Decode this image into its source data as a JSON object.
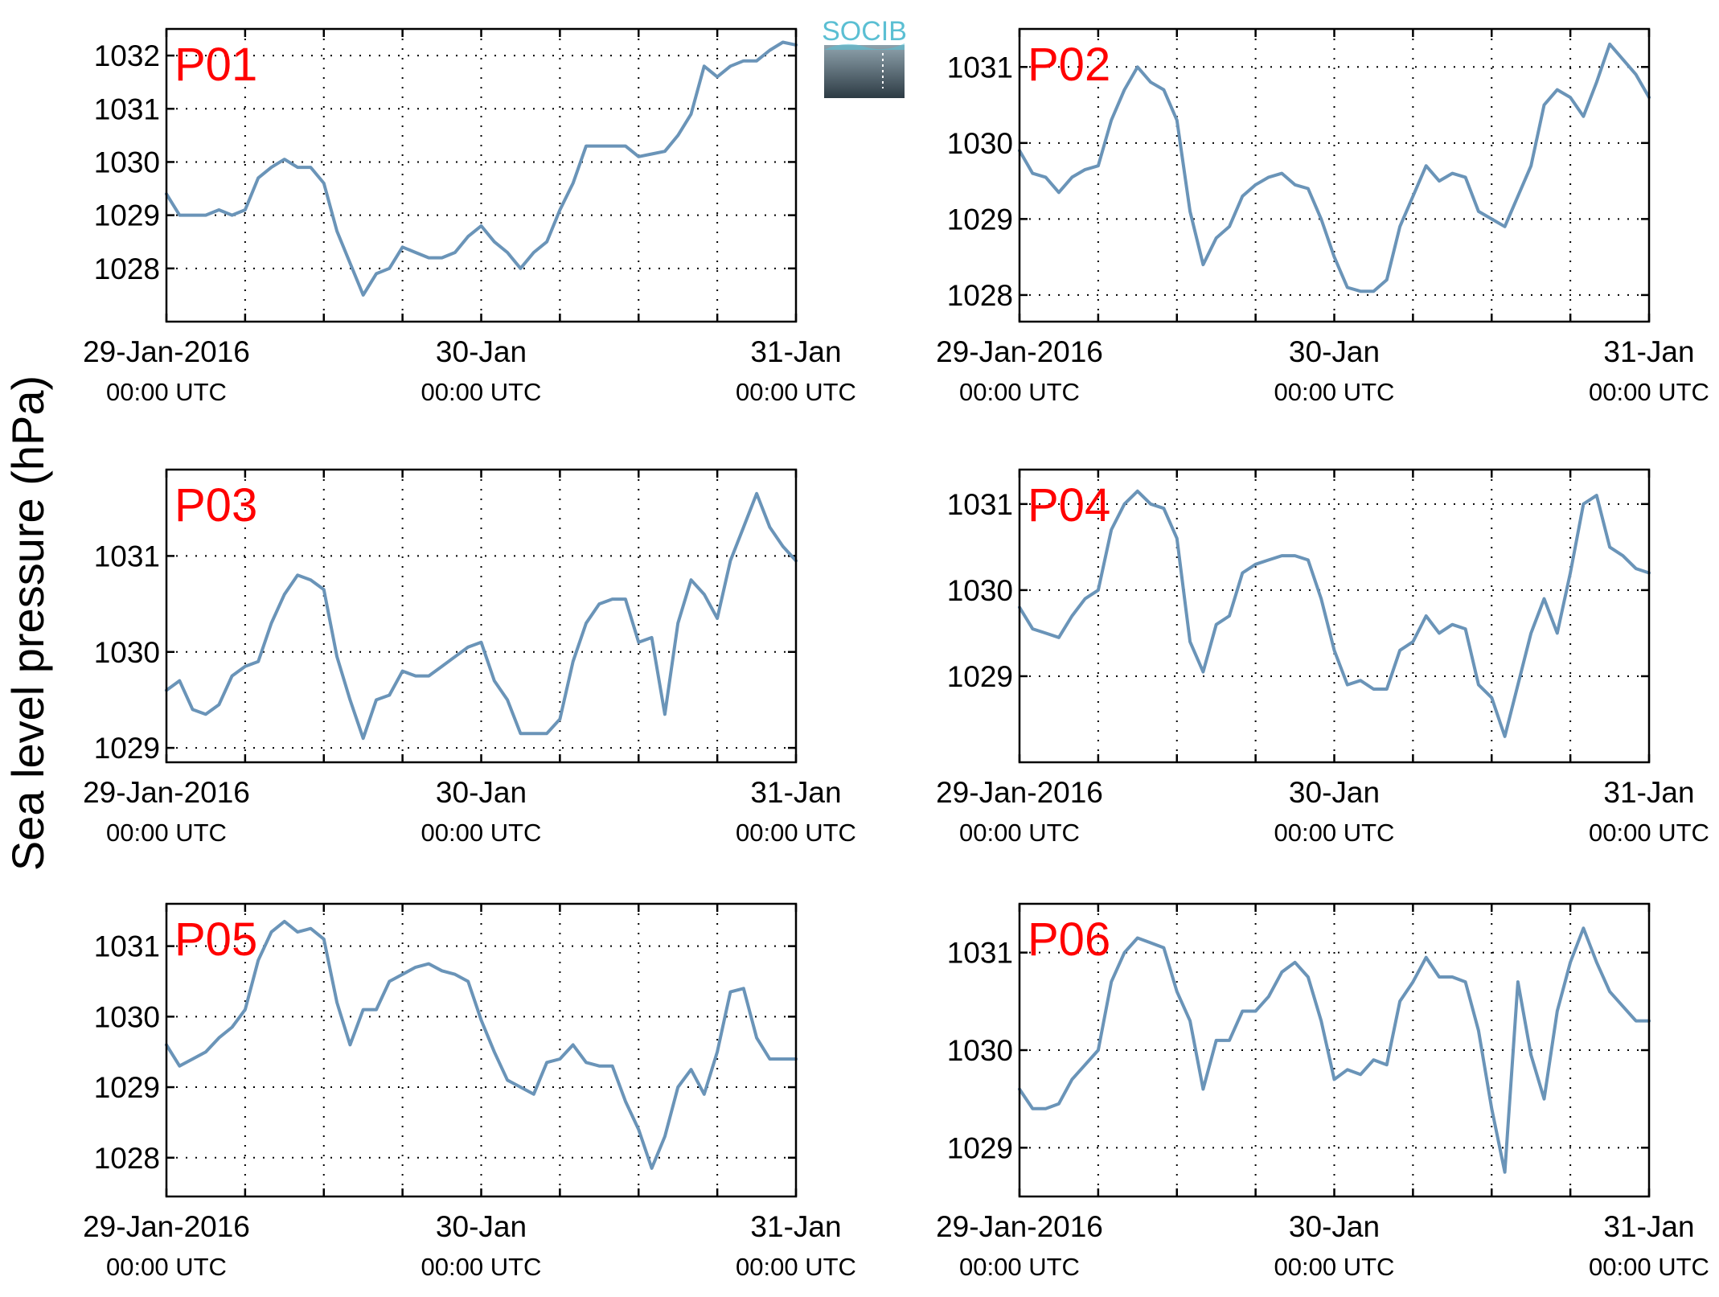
{
  "ylabel": "Sea level pressure (hPa)",
  "logo": {
    "text": "SOCIB",
    "text_color": "#5bbfd3",
    "gradient_top": "#8fa3ad",
    "gradient_bottom": "#2d3b44"
  },
  "colors": {
    "line": "#6a94b8",
    "label": "#ff0000",
    "axis": "#000000"
  },
  "chart_data": [
    {
      "type": "line",
      "title": "P01",
      "ylim": [
        1027.0,
        1032.5
      ],
      "yticks": [
        1028,
        1029,
        1030,
        1031,
        1032
      ],
      "xlim": [
        0,
        48
      ],
      "xtick_labels": [
        "29-Jan-2016",
        "30-Jan",
        "31-Jan"
      ],
      "xtick_sublabels": [
        "00:00 UTC",
        "00:00 UTC",
        "00:00 UTC"
      ],
      "grid": true,
      "x": [
        0,
        1,
        2,
        3,
        4,
        5,
        6,
        7,
        8,
        9,
        10,
        11,
        12,
        13,
        14,
        15,
        16,
        17,
        18,
        19,
        20,
        21,
        22,
        23,
        24,
        25,
        26,
        27,
        28,
        29,
        30,
        31,
        32,
        33,
        34,
        35,
        36,
        37,
        38,
        39,
        40,
        41,
        42,
        43,
        44,
        45,
        46,
        47,
        48
      ],
      "series": [
        {
          "values": [
            1029.4,
            1029.0,
            1029.0,
            1029.0,
            1029.1,
            1029.0,
            1029.1,
            1029.7,
            1029.9,
            1030.05,
            1029.9,
            1029.9,
            1029.6,
            1028.7,
            1028.1,
            1027.5,
            1027.9,
            1028.0,
            1028.4,
            1028.3,
            1028.2,
            1028.2,
            1028.3,
            1028.6,
            1028.8,
            1028.5,
            1028.3,
            1028.0,
            1028.3,
            1028.5,
            1029.1,
            1029.6,
            1030.3,
            1030.3,
            1030.3,
            1030.3,
            1030.1,
            1030.15,
            1030.2,
            1030.5,
            1030.9,
            1031.8,
            1031.6,
            1031.8,
            1031.9,
            1031.9,
            1032.1,
            1032.25,
            1032.2
          ]
        }
      ]
    },
    {
      "type": "line",
      "title": "P02",
      "ylim": [
        1027.65,
        1031.5
      ],
      "yticks": [
        1028,
        1029,
        1030,
        1031
      ],
      "xlim": [
        0,
        48
      ],
      "xtick_labels": [
        "29-Jan-2016",
        "30-Jan",
        "31-Jan"
      ],
      "xtick_sublabels": [
        "00:00 UTC",
        "00:00 UTC",
        "00:00 UTC"
      ],
      "grid": true,
      "x": [
        0,
        1,
        2,
        3,
        4,
        5,
        6,
        7,
        8,
        9,
        10,
        11,
        12,
        13,
        14,
        15,
        16,
        17,
        18,
        19,
        20,
        21,
        22,
        23,
        24,
        25,
        26,
        27,
        28,
        29,
        30,
        31,
        32,
        33,
        34,
        35,
        36,
        37,
        38,
        39,
        40,
        41,
        42,
        43,
        44,
        45,
        46,
        47,
        48
      ],
      "series": [
        {
          "values": [
            1029.9,
            1029.6,
            1029.55,
            1029.35,
            1029.55,
            1029.65,
            1029.7,
            1030.3,
            1030.7,
            1031.0,
            1030.8,
            1030.7,
            1030.3,
            1029.1,
            1028.4,
            1028.75,
            1028.9,
            1029.3,
            1029.45,
            1029.55,
            1029.6,
            1029.45,
            1029.4,
            1029.0,
            1028.5,
            1028.1,
            1028.05,
            1028.05,
            1028.2,
            1028.9,
            1029.3,
            1029.7,
            1029.5,
            1029.6,
            1029.55,
            1029.1,
            1029.0,
            1028.9,
            1029.3,
            1029.7,
            1030.5,
            1030.7,
            1030.6,
            1030.35,
            1030.8,
            1031.3,
            1031.1,
            1030.9,
            1030.6
          ]
        }
      ]
    },
    {
      "type": "line",
      "title": "P03",
      "ylim": [
        1028.85,
        1031.9
      ],
      "yticks": [
        1029,
        1030,
        1031
      ],
      "xlim": [
        0,
        48
      ],
      "xtick_labels": [
        "29-Jan-2016",
        "30-Jan",
        "31-Jan"
      ],
      "xtick_sublabels": [
        "00:00 UTC",
        "00:00 UTC",
        "00:00 UTC"
      ],
      "grid": true,
      "x": [
        0,
        1,
        2,
        3,
        4,
        5,
        6,
        7,
        8,
        9,
        10,
        11,
        12,
        13,
        14,
        15,
        16,
        17,
        18,
        19,
        20,
        21,
        22,
        23,
        24,
        25,
        26,
        27,
        28,
        29,
        30,
        31,
        32,
        33,
        34,
        35,
        36,
        37,
        38,
        39,
        40,
        41,
        42,
        43,
        44,
        45,
        46,
        47,
        48
      ],
      "series": [
        {
          "values": [
            1029.6,
            1029.7,
            1029.4,
            1029.35,
            1029.45,
            1029.75,
            1029.85,
            1029.9,
            1030.3,
            1030.6,
            1030.8,
            1030.75,
            1030.65,
            1029.95,
            1029.5,
            1029.1,
            1029.5,
            1029.55,
            1029.8,
            1029.75,
            1029.75,
            1029.85,
            1029.95,
            1030.05,
            1030.1,
            1029.7,
            1029.5,
            1029.15,
            1029.15,
            1029.15,
            1029.3,
            1029.9,
            1030.3,
            1030.5,
            1030.55,
            1030.55,
            1030.1,
            1030.15,
            1029.35,
            1030.3,
            1030.75,
            1030.6,
            1030.35,
            1030.95,
            1031.3,
            1031.65,
            1031.3,
            1031.1,
            1030.95
          ]
        }
      ]
    },
    {
      "type": "line",
      "title": "P04",
      "ylim": [
        1028.0,
        1031.4
      ],
      "yticks": [
        1029,
        1030,
        1031
      ],
      "xlim": [
        0,
        48
      ],
      "xtick_labels": [
        "29-Jan-2016",
        "30-Jan",
        "31-Jan"
      ],
      "xtick_sublabels": [
        "00:00 UTC",
        "00:00 UTC",
        "00:00 UTC"
      ],
      "grid": true,
      "x": [
        0,
        1,
        2,
        3,
        4,
        5,
        6,
        7,
        8,
        9,
        10,
        11,
        12,
        13,
        14,
        15,
        16,
        17,
        18,
        19,
        20,
        21,
        22,
        23,
        24,
        25,
        26,
        27,
        28,
        29,
        30,
        31,
        32,
        33,
        34,
        35,
        36,
        37,
        38,
        39,
        40,
        41,
        42,
        43,
        44,
        45,
        46,
        47,
        48
      ],
      "series": [
        {
          "values": [
            1029.8,
            1029.55,
            1029.5,
            1029.45,
            1029.7,
            1029.9,
            1030.0,
            1030.7,
            1031.0,
            1031.15,
            1031.0,
            1030.95,
            1030.6,
            1029.4,
            1029.05,
            1029.6,
            1029.7,
            1030.2,
            1030.3,
            1030.35,
            1030.4,
            1030.4,
            1030.35,
            1029.9,
            1029.3,
            1028.9,
            1028.95,
            1028.85,
            1028.85,
            1029.3,
            1029.4,
            1029.7,
            1029.5,
            1029.6,
            1029.55,
            1028.9,
            1028.75,
            1028.3,
            1028.9,
            1029.5,
            1029.9,
            1029.5,
            1030.2,
            1031.0,
            1031.1,
            1030.5,
            1030.4,
            1030.25,
            1030.2
          ]
        }
      ]
    },
    {
      "type": "line",
      "title": "P05",
      "ylim": [
        1027.45,
        1031.6
      ],
      "yticks": [
        1028,
        1029,
        1030,
        1031
      ],
      "xlim": [
        0,
        48
      ],
      "xtick_labels": [
        "29-Jan-2016",
        "30-Jan",
        "31-Jan"
      ],
      "xtick_sublabels": [
        "00:00 UTC",
        "00:00 UTC",
        "00:00 UTC"
      ],
      "grid": true,
      "x": [
        0,
        1,
        2,
        3,
        4,
        5,
        6,
        7,
        8,
        9,
        10,
        11,
        12,
        13,
        14,
        15,
        16,
        17,
        18,
        19,
        20,
        21,
        22,
        23,
        24,
        25,
        26,
        27,
        28,
        29,
        30,
        31,
        32,
        33,
        34,
        35,
        36,
        37,
        38,
        39,
        40,
        41,
        42,
        43,
        44,
        45,
        46,
        47,
        48
      ],
      "series": [
        {
          "values": [
            1029.6,
            1029.3,
            1029.4,
            1029.5,
            1029.7,
            1029.85,
            1030.1,
            1030.8,
            1031.2,
            1031.35,
            1031.2,
            1031.25,
            1031.1,
            1030.2,
            1029.6,
            1030.1,
            1030.1,
            1030.5,
            1030.6,
            1030.7,
            1030.75,
            1030.65,
            1030.6,
            1030.5,
            1029.95,
            1029.5,
            1029.1,
            1029.0,
            1028.9,
            1029.35,
            1029.4,
            1029.6,
            1029.35,
            1029.3,
            1029.3,
            1028.8,
            1028.4,
            1027.85,
            1028.3,
            1029.0,
            1029.25,
            1028.9,
            1029.5,
            1030.35,
            1030.4,
            1029.7,
            1029.4,
            1029.4,
            1029.4
          ]
        }
      ]
    },
    {
      "type": "line",
      "title": "P06",
      "ylim": [
        1028.5,
        1031.5
      ],
      "yticks": [
        1029,
        1030,
        1031
      ],
      "xlim": [
        0,
        48
      ],
      "xtick_labels": [
        "29-Jan-2016",
        "30-Jan",
        "31-Jan"
      ],
      "xtick_sublabels": [
        "00:00 UTC",
        "00:00 UTC",
        "00:00 UTC"
      ],
      "grid": true,
      "x": [
        0,
        1,
        2,
        3,
        4,
        5,
        6,
        7,
        8,
        9,
        10,
        11,
        12,
        13,
        14,
        15,
        16,
        17,
        18,
        19,
        20,
        21,
        22,
        23,
        24,
        25,
        26,
        27,
        28,
        29,
        30,
        31,
        32,
        33,
        34,
        35,
        36,
        37,
        38,
        39,
        40,
        41,
        42,
        43,
        44,
        45,
        46,
        47,
        48
      ],
      "series": [
        {
          "values": [
            1029.6,
            1029.4,
            1029.4,
            1029.45,
            1029.7,
            1029.85,
            1030.0,
            1030.7,
            1031.0,
            1031.15,
            1031.1,
            1031.05,
            1030.6,
            1030.3,
            1029.6,
            1030.1,
            1030.1,
            1030.4,
            1030.4,
            1030.55,
            1030.8,
            1030.9,
            1030.75,
            1030.3,
            1029.7,
            1029.8,
            1029.75,
            1029.9,
            1029.85,
            1030.5,
            1030.7,
            1030.95,
            1030.75,
            1030.75,
            1030.7,
            1030.2,
            1029.4,
            1028.75,
            1030.7,
            1029.95,
            1029.5,
            1030.4,
            1030.9,
            1031.25,
            1030.9,
            1030.6,
            1030.45,
            1030.3,
            1030.3
          ]
        }
      ]
    }
  ]
}
